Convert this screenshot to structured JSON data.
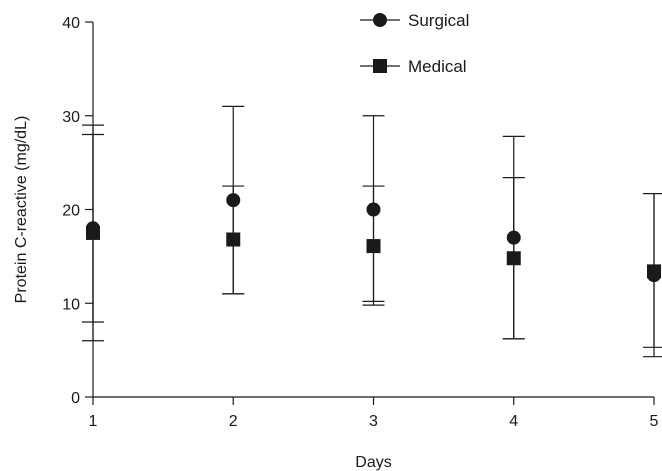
{
  "chart_data": {
    "type": "scatter",
    "xlabel": "Days",
    "ylabel": "Protein C-reactive (mg/dL)",
    "x": [
      1,
      2,
      3,
      4,
      5
    ],
    "xlim": [
      1,
      5
    ],
    "ylim": [
      0,
      40
    ],
    "xticks": [
      "1",
      "2",
      "3",
      "4",
      "5"
    ],
    "yticks": [
      "0",
      "10",
      "20",
      "30",
      "40"
    ],
    "grid": false,
    "legend_position": "top-right",
    "series": [
      {
        "name": "Surgical",
        "marker": "circle",
        "color": "#1a1a1a",
        "values": [
          18,
          21,
          20,
          17,
          13
        ],
        "upper": [
          29,
          31,
          30,
          27.8,
          21.7
        ],
        "lower": [
          8,
          11,
          10.2,
          6.2,
          4.3
        ]
      },
      {
        "name": "Medical",
        "marker": "square",
        "color": "#1a1a1a",
        "values": [
          17.5,
          16.8,
          16.1,
          14.8,
          13.4
        ],
        "upper": [
          28,
          22.5,
          22.5,
          23.4,
          21.7
        ],
        "lower": [
          6,
          11,
          9.8,
          6.2,
          5.3
        ]
      }
    ]
  }
}
